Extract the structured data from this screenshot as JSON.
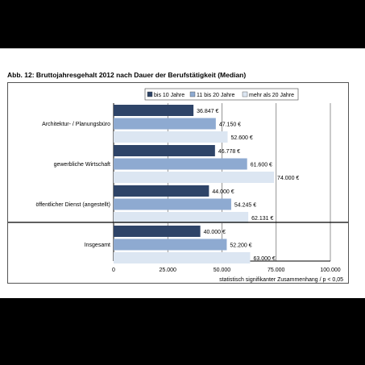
{
  "figure": {
    "title": "Abb. 12: Bruttojahresgehalt 2012 nach Dauer der Berufstätigkeit (Median)"
  },
  "colors": {
    "series": [
      "#2e4468",
      "#8eaad1",
      "#dce6f2"
    ]
  },
  "chart_data": {
    "type": "bar",
    "orientation": "horizontal",
    "categories": [
      "Architektur- / Planungsbüro",
      "gewerbliche Wirtschaft",
      "öffentlicher Dienst (angestellt)",
      "Insgesamt"
    ],
    "series": [
      {
        "name": "bis 10 Jahre",
        "values": [
          36847,
          46778,
          44000,
          40000
        ],
        "labels": [
          "36.847 €",
          "46.778 €",
          "44.000 €",
          "40.000 €"
        ]
      },
      {
        "name": "11 bis 20 Jahre",
        "values": [
          47150,
          61600,
          54245,
          52200
        ],
        "labels": [
          "47.150 €",
          "61.600 €",
          "54.245 €",
          "52.200 €"
        ]
      },
      {
        "name": "mehr als 20 Jahre",
        "values": [
          52600,
          74000,
          62131,
          63000
        ],
        "labels": [
          "52.600 €",
          "74.000 €",
          "62.131 €",
          "63.000 €"
        ]
      }
    ],
    "xlim": [
      0,
      100000
    ],
    "xticks": [
      0,
      25000,
      50000,
      75000,
      100000
    ],
    "xtick_labels": [
      "0",
      "25.000",
      "50.000",
      "75.000",
      "100.000"
    ],
    "note": "statistisch signifikanter Zusammenhang / p < 0,05",
    "legend_position": "top-right",
    "grid": true
  }
}
